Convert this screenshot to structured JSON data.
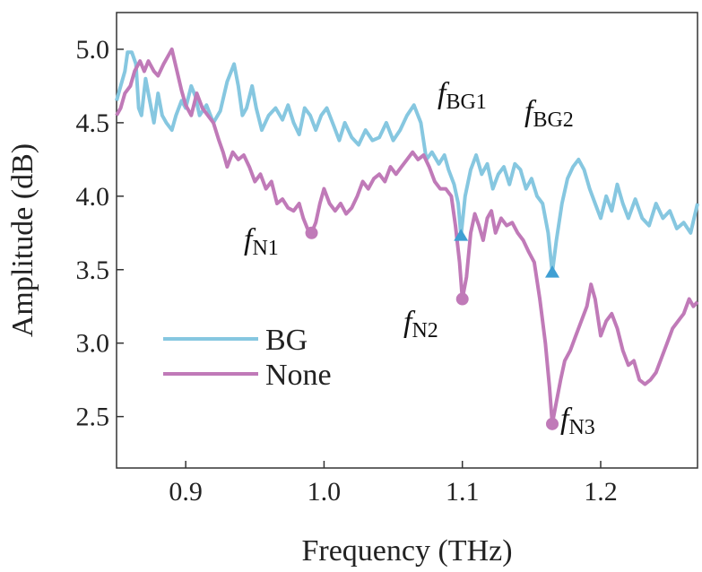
{
  "chart_data": {
    "type": "line",
    "xlabel": "Frequency (THz)",
    "ylabel": "Amplitude (dB)",
    "xlim": [
      0.85,
      1.27
    ],
    "ylim": [
      2.15,
      5.25
    ],
    "xticks": [
      0.9,
      1.0,
      1.1,
      1.2
    ],
    "xtick_labels": [
      "0.9",
      "1.0",
      "1.1",
      "1.2"
    ],
    "yticks": [
      2.5,
      3.0,
      3.5,
      4.0,
      4.5,
      5.0
    ],
    "ytick_labels": [
      "2.5",
      "3.0",
      "3.5",
      "4.0",
      "4.5",
      "5.0"
    ],
    "grid": false,
    "legend_position": "lower-left",
    "series": [
      {
        "name": "BG",
        "color": "#86c7e0",
        "points": [
          [
            0.85,
            4.65
          ],
          [
            0.853,
            4.75
          ],
          [
            0.856,
            4.85
          ],
          [
            0.858,
            4.98
          ],
          [
            0.861,
            4.98
          ],
          [
            0.864,
            4.9
          ],
          [
            0.866,
            4.6
          ],
          [
            0.868,
            4.55
          ],
          [
            0.871,
            4.8
          ],
          [
            0.874,
            4.65
          ],
          [
            0.877,
            4.5
          ],
          [
            0.88,
            4.7
          ],
          [
            0.883,
            4.55
          ],
          [
            0.886,
            4.5
          ],
          [
            0.89,
            4.45
          ],
          [
            0.893,
            4.55
          ],
          [
            0.897,
            4.65
          ],
          [
            0.9,
            4.6
          ],
          [
            0.904,
            4.75
          ],
          [
            0.907,
            4.68
          ],
          [
            0.91,
            4.55
          ],
          [
            0.915,
            4.62
          ],
          [
            0.92,
            4.5
          ],
          [
            0.925,
            4.58
          ],
          [
            0.93,
            4.78
          ],
          [
            0.935,
            4.9
          ],
          [
            0.938,
            4.75
          ],
          [
            0.941,
            4.55
          ],
          [
            0.944,
            4.6
          ],
          [
            0.948,
            4.75
          ],
          [
            0.951,
            4.6
          ],
          [
            0.955,
            4.45
          ],
          [
            0.96,
            4.55
          ],
          [
            0.965,
            4.6
          ],
          [
            0.97,
            4.52
          ],
          [
            0.974,
            4.62
          ],
          [
            0.978,
            4.5
          ],
          [
            0.982,
            4.42
          ],
          [
            0.986,
            4.6
          ],
          [
            0.99,
            4.55
          ],
          [
            0.994,
            4.45
          ],
          [
            0.998,
            4.55
          ],
          [
            1.002,
            4.6
          ],
          [
            1.007,
            4.48
          ],
          [
            1.011,
            4.38
          ],
          [
            1.015,
            4.5
          ],
          [
            1.02,
            4.4
          ],
          [
            1.025,
            4.35
          ],
          [
            1.03,
            4.45
          ],
          [
            1.035,
            4.38
          ],
          [
            1.04,
            4.4
          ],
          [
            1.045,
            4.5
          ],
          [
            1.05,
            4.38
          ],
          [
            1.055,
            4.45
          ],
          [
            1.06,
            4.55
          ],
          [
            1.065,
            4.62
          ],
          [
            1.07,
            4.5
          ],
          [
            1.074,
            4.25
          ],
          [
            1.078,
            4.3
          ],
          [
            1.083,
            4.22
          ],
          [
            1.087,
            4.28
          ],
          [
            1.09,
            4.18
          ],
          [
            1.094,
            4.08
          ],
          [
            1.097,
            3.95
          ],
          [
            1.099,
            3.73
          ],
          [
            1.102,
            4.0
          ],
          [
            1.106,
            4.18
          ],
          [
            1.11,
            4.28
          ],
          [
            1.114,
            4.15
          ],
          [
            1.118,
            4.22
          ],
          [
            1.122,
            4.05
          ],
          [
            1.126,
            4.15
          ],
          [
            1.13,
            4.2
          ],
          [
            1.134,
            4.08
          ],
          [
            1.138,
            4.22
          ],
          [
            1.142,
            4.18
          ],
          [
            1.146,
            4.05
          ],
          [
            1.15,
            4.12
          ],
          [
            1.154,
            4.0
          ],
          [
            1.158,
            3.95
          ],
          [
            1.162,
            3.75
          ],
          [
            1.165,
            3.48
          ],
          [
            1.168,
            3.7
          ],
          [
            1.172,
            3.95
          ],
          [
            1.176,
            4.12
          ],
          [
            1.18,
            4.2
          ],
          [
            1.184,
            4.25
          ],
          [
            1.188,
            4.18
          ],
          [
            1.192,
            4.05
          ],
          [
            1.196,
            3.95
          ],
          [
            1.2,
            3.85
          ],
          [
            1.204,
            4.0
          ],
          [
            1.208,
            3.9
          ],
          [
            1.212,
            4.08
          ],
          [
            1.216,
            3.95
          ],
          [
            1.22,
            3.85
          ],
          [
            1.225,
            3.98
          ],
          [
            1.23,
            3.85
          ],
          [
            1.235,
            3.8
          ],
          [
            1.24,
            3.95
          ],
          [
            1.245,
            3.85
          ],
          [
            1.25,
            3.9
          ],
          [
            1.255,
            3.78
          ],
          [
            1.26,
            3.82
          ],
          [
            1.265,
            3.75
          ],
          [
            1.27,
            3.95
          ]
        ]
      },
      {
        "name": "None",
        "color": "#c07ab8",
        "points": [
          [
            0.85,
            4.55
          ],
          [
            0.853,
            4.6
          ],
          [
            0.856,
            4.7
          ],
          [
            0.86,
            4.75
          ],
          [
            0.863,
            4.85
          ],
          [
            0.867,
            4.92
          ],
          [
            0.87,
            4.85
          ],
          [
            0.873,
            4.92
          ],
          [
            0.877,
            4.85
          ],
          [
            0.88,
            4.82
          ],
          [
            0.884,
            4.9
          ],
          [
            0.887,
            4.95
          ],
          [
            0.89,
            5.0
          ],
          [
            0.893,
            4.88
          ],
          [
            0.897,
            4.72
          ],
          [
            0.9,
            4.62
          ],
          [
            0.904,
            4.55
          ],
          [
            0.908,
            4.7
          ],
          [
            0.912,
            4.6
          ],
          [
            0.916,
            4.55
          ],
          [
            0.92,
            4.5
          ],
          [
            0.924,
            4.38
          ],
          [
            0.927,
            4.3
          ],
          [
            0.93,
            4.2
          ],
          [
            0.934,
            4.3
          ],
          [
            0.938,
            4.25
          ],
          [
            0.942,
            4.28
          ],
          [
            0.946,
            4.2
          ],
          [
            0.95,
            4.1
          ],
          [
            0.954,
            4.15
          ],
          [
            0.958,
            4.05
          ],
          [
            0.962,
            4.1
          ],
          [
            0.966,
            3.95
          ],
          [
            0.97,
            3.98
          ],
          [
            0.974,
            3.92
          ],
          [
            0.978,
            3.9
          ],
          [
            0.982,
            3.95
          ],
          [
            0.985,
            3.85
          ],
          [
            0.988,
            3.78
          ],
          [
            0.991,
            3.75
          ],
          [
            0.994,
            3.82
          ],
          [
            0.997,
            3.95
          ],
          [
            1.0,
            4.05
          ],
          [
            1.004,
            3.95
          ],
          [
            1.008,
            3.9
          ],
          [
            1.012,
            3.95
          ],
          [
            1.016,
            3.88
          ],
          [
            1.02,
            3.92
          ],
          [
            1.024,
            4.0
          ],
          [
            1.028,
            4.1
          ],
          [
            1.032,
            4.05
          ],
          [
            1.036,
            4.12
          ],
          [
            1.04,
            4.15
          ],
          [
            1.044,
            4.1
          ],
          [
            1.048,
            4.2
          ],
          [
            1.052,
            4.15
          ],
          [
            1.056,
            4.2
          ],
          [
            1.06,
            4.25
          ],
          [
            1.064,
            4.3
          ],
          [
            1.068,
            4.25
          ],
          [
            1.072,
            4.28
          ],
          [
            1.076,
            4.2
          ],
          [
            1.08,
            4.1
          ],
          [
            1.084,
            4.05
          ],
          [
            1.088,
            4.05
          ],
          [
            1.092,
            4.0
          ],
          [
            1.095,
            3.8
          ],
          [
            1.098,
            3.55
          ],
          [
            1.1,
            3.3
          ],
          [
            1.103,
            3.45
          ],
          [
            1.106,
            3.75
          ],
          [
            1.109,
            3.88
          ],
          [
            1.112,
            3.8
          ],
          [
            1.115,
            3.7
          ],
          [
            1.118,
            3.85
          ],
          [
            1.121,
            3.9
          ],
          [
            1.124,
            3.75
          ],
          [
            1.128,
            3.85
          ],
          [
            1.132,
            3.8
          ],
          [
            1.136,
            3.82
          ],
          [
            1.14,
            3.75
          ],
          [
            1.144,
            3.7
          ],
          [
            1.148,
            3.62
          ],
          [
            1.152,
            3.55
          ],
          [
            1.156,
            3.3
          ],
          [
            1.16,
            3.0
          ],
          [
            1.163,
            2.7
          ],
          [
            1.165,
            2.45
          ],
          [
            1.168,
            2.6
          ],
          [
            1.171,
            2.75
          ],
          [
            1.174,
            2.88
          ],
          [
            1.178,
            2.95
          ],
          [
            1.182,
            3.05
          ],
          [
            1.186,
            3.15
          ],
          [
            1.19,
            3.25
          ],
          [
            1.193,
            3.4
          ],
          [
            1.196,
            3.3
          ],
          [
            1.2,
            3.05
          ],
          [
            1.204,
            3.15
          ],
          [
            1.208,
            3.2
          ],
          [
            1.212,
            3.1
          ],
          [
            1.216,
            2.95
          ],
          [
            1.22,
            2.85
          ],
          [
            1.224,
            2.88
          ],
          [
            1.228,
            2.75
          ],
          [
            1.232,
            2.72
          ],
          [
            1.236,
            2.75
          ],
          [
            1.24,
            2.8
          ],
          [
            1.244,
            2.9
          ],
          [
            1.248,
            3.0
          ],
          [
            1.252,
            3.1
          ],
          [
            1.256,
            3.15
          ],
          [
            1.26,
            3.2
          ],
          [
            1.264,
            3.3
          ],
          [
            1.267,
            3.25
          ],
          [
            1.27,
            3.28
          ]
        ]
      }
    ],
    "markers": [
      {
        "series": "BG",
        "shape": "triangle",
        "x": 1.099,
        "y": 3.73
      },
      {
        "series": "BG",
        "shape": "triangle",
        "x": 1.165,
        "y": 3.48
      },
      {
        "series": "None",
        "shape": "circle",
        "x": 0.991,
        "y": 3.75
      },
      {
        "series": "None",
        "shape": "circle",
        "x": 1.1,
        "y": 3.3
      },
      {
        "series": "None",
        "shape": "circle",
        "x": 1.165,
        "y": 2.45
      }
    ],
    "annotations": [
      {
        "main": "f",
        "sub": "BG1"
      },
      {
        "main": "f",
        "sub": "BG2"
      },
      {
        "main": "f",
        "sub": "N1"
      },
      {
        "main": "f",
        "sub": "N2"
      },
      {
        "main": "f",
        "sub": "N3"
      }
    ]
  }
}
